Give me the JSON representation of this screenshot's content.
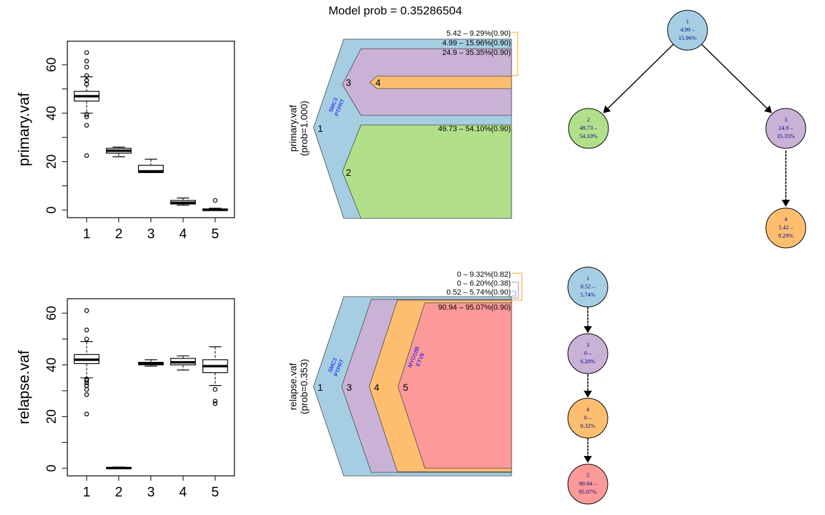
{
  "title": "Model prob = 0.35286504",
  "colors": {
    "clone1": "#a6cee3",
    "clone2": "#b2df8a",
    "clone3": "#cab2d6",
    "clone4": "#fdbf6f",
    "clone5": "#fb9a99",
    "bracket_orange": "#fdbf6f",
    "bracket_blue": "#a6cee3",
    "gene_text": "#0000ff",
    "node_text": "#00008b"
  },
  "chart_data": [
    {
      "type": "boxplot",
      "name": "primary",
      "ylabel": "primary.vaf",
      "ylim": [
        0,
        68
      ],
      "yticks": [
        0,
        20,
        40,
        60
      ],
      "categories": [
        "1",
        "2",
        "3",
        "4",
        "5"
      ],
      "boxes": [
        {
          "q1": 45,
          "median": 47,
          "q3": 49,
          "lo": 40,
          "hi": 55,
          "outliers": [
            22.5,
            35,
            38.5,
            39.5,
            52,
            53.5,
            55.5,
            59,
            61.5,
            65
          ]
        },
        {
          "q1": 23.5,
          "median": 24.5,
          "q3": 25.5,
          "lo": 22,
          "hi": 26,
          "outliers": []
        },
        {
          "q1": 15.5,
          "median": 16,
          "q3": 18.5,
          "lo": 15.5,
          "hi": 21,
          "outliers": []
        },
        {
          "q1": 2.5,
          "median": 3,
          "q3": 4,
          "lo": 2,
          "hi": 5,
          "outliers": []
        },
        {
          "q1": 0,
          "median": 0.1,
          "q3": 0.5,
          "lo": 0,
          "hi": 0.8,
          "outliers": [
            4
          ]
        }
      ]
    },
    {
      "type": "boxplot",
      "name": "relapse",
      "ylabel": "relapse.vaf",
      "ylim": [
        0,
        64
      ],
      "yticks": [
        0,
        20,
        40,
        60
      ],
      "categories": [
        "1",
        "2",
        "3",
        "4",
        "5"
      ],
      "boxes": [
        {
          "q1": 40.5,
          "median": 42,
          "q3": 44,
          "lo": 35,
          "hi": 49,
          "outliers": [
            21,
            28.5,
            30.5,
            32,
            33,
            34,
            34.5,
            50,
            53.5,
            61
          ]
        },
        {
          "q1": 0,
          "median": 0.1,
          "q3": 0.3,
          "lo": 0,
          "hi": 0.5,
          "outliers": []
        },
        {
          "q1": 40,
          "median": 40.5,
          "q3": 41,
          "lo": 39.5,
          "hi": 42,
          "outliers": []
        },
        {
          "q1": 40,
          "median": 41,
          "q3": 42.5,
          "lo": 38,
          "hi": 43.5,
          "outliers": []
        },
        {
          "q1": 37,
          "median": 39.5,
          "q3": 42,
          "lo": 32,
          "hi": 47,
          "outliers": [
            25,
            26,
            30.5
          ]
        }
      ]
    }
  ],
  "fish": {
    "primary": {
      "ylabel": "primary.vaf",
      "prob": "(prob=1.000)",
      "clone_labels": [
        "1",
        "3",
        "4",
        "2"
      ],
      "genes": [
        "SMC3",
        "PTPRT"
      ],
      "annotations": [
        "5.42 – 9.29%(0.90)",
        "4.99 – 15.96%(0.90)",
        "24.9 – 35.35%(0.90)",
        "49.73 – 54.10%(0.90)"
      ]
    },
    "relapse": {
      "ylabel": "relapse.vaf",
      "prob": "(prob=0.353)",
      "clone_labels": [
        "1",
        "3",
        "4",
        "5"
      ],
      "genes1": [
        "SMC3",
        "PTPRT"
      ],
      "genes5": [
        "MYO18B",
        "ETV6"
      ],
      "annotations": [
        "0 – 9.32%(0.82)",
        "0 – 6.20%(0.38)",
        "0.52 – 5.74%(0.90)",
        "90.94 – 95.07%(0.90)"
      ]
    }
  },
  "trees": {
    "primary": [
      {
        "id": "1",
        "lines": [
          "1",
          "4.99 –",
          "15.96%"
        ],
        "color": "#a6cee3"
      },
      {
        "id": "2",
        "lines": [
          "2",
          "49.73 –",
          "54.10%"
        ],
        "color": "#b2df8a"
      },
      {
        "id": "3",
        "lines": [
          "3",
          "24.9 –",
          "35.35%"
        ],
        "color": "#cab2d6"
      },
      {
        "id": "4",
        "lines": [
          "4",
          "5.42 –",
          "9.29%"
        ],
        "color": "#fdbf6f"
      }
    ],
    "relapse": [
      {
        "id": "1",
        "lines": [
          "1",
          "0.52 –",
          "5.74%"
        ],
        "color": "#a6cee3"
      },
      {
        "id": "3",
        "lines": [
          "3",
          "0 –",
          "6.20%"
        ],
        "color": "#cab2d6"
      },
      {
        "id": "4",
        "lines": [
          "4",
          "0 –",
          "9.32%"
        ],
        "color": "#fdbf6f"
      },
      {
        "id": "5",
        "lines": [
          "5",
          "90.94 –",
          "95.07%"
        ],
        "color": "#fb9a99"
      }
    ]
  }
}
